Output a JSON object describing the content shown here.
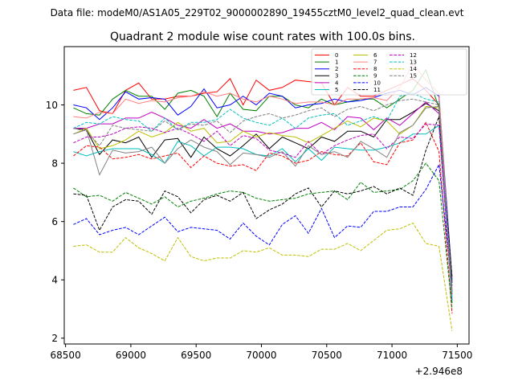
{
  "chart_data": {
    "type": "line",
    "suptitle": "Data file: modeM0/AS1A05_229T02_9000002890_19455cztM0_level2_quad_clean.evt",
    "title": "Quadrant 2 module wise count rates with 100.0s bins.",
    "xlabel": "",
    "ylabel": "",
    "offset_label": "+2.946e8",
    "xlim": [
      68490,
      71590
    ],
    "ylim": [
      1.8,
      12.0
    ],
    "xticks": [
      68500,
      69000,
      69500,
      70000,
      70500,
      71000,
      71500
    ],
    "yticks": [
      2,
      4,
      6,
      8,
      10
    ],
    "grid": false,
    "legend_position": "top-right",
    "x": [
      68560,
      68660,
      68760,
      68860,
      68960,
      69060,
      69160,
      69260,
      69360,
      69460,
      69560,
      69660,
      69760,
      69860,
      69960,
      70060,
      70160,
      70260,
      70360,
      70460,
      70560,
      70660,
      70760,
      70860,
      70960,
      71060,
      71160,
      71260,
      71360,
      71460
    ],
    "series": [
      {
        "name": "0",
        "color": "#ff0000",
        "dash": "solid",
        "values": [
          10.5,
          10.6,
          9.8,
          9.7,
          10.5,
          10.75,
          10.2,
          10.2,
          10.3,
          10.3,
          10.4,
          10.45,
          10.9,
          10.0,
          10.85,
          10.5,
          10.6,
          10.85,
          10.8,
          10.75,
          10.0,
          10.6,
          10.3,
          10.3,
          10.5,
          10.7,
          10.9,
          10.5,
          10.0,
          3.5
        ]
      },
      {
        "name": "1",
        "color": "#008000",
        "dash": "solid",
        "values": [
          9.9,
          9.7,
          9.65,
          10.2,
          10.5,
          10.3,
          10.3,
          9.85,
          10.4,
          10.5,
          10.3,
          9.6,
          10.4,
          9.85,
          9.8,
          10.3,
          10.3,
          10.0,
          9.9,
          10.2,
          10.0,
          10.1,
          10.2,
          10.2,
          9.9,
          10.2,
          10.5,
          11.2,
          9.9,
          3.2
        ]
      },
      {
        "name": "2",
        "color": "#0000ff",
        "dash": "solid",
        "values": [
          10.0,
          9.9,
          9.5,
          9.9,
          10.45,
          10.2,
          10.25,
          10.2,
          9.65,
          9.95,
          10.55,
          9.9,
          10.0,
          10.3,
          10.0,
          10.4,
          10.3,
          9.9,
          10.0,
          10.05,
          10.2,
          10.1,
          10.15,
          10.25,
          10.4,
          10.5,
          10.35,
          10.6,
          10.3,
          4.0
        ]
      },
      {
        "name": "3",
        "color": "#000000",
        "dash": "solid",
        "values": [
          9.2,
          9.15,
          8.3,
          8.8,
          8.7,
          8.9,
          8.2,
          8.8,
          8.85,
          8.2,
          8.9,
          8.5,
          8.25,
          8.6,
          9.0,
          8.5,
          8.9,
          8.7,
          8.5,
          8.9,
          8.75,
          9.1,
          9.1,
          8.9,
          9.5,
          9.5,
          9.75,
          10.05,
          9.8,
          3.9
        ]
      },
      {
        "name": "4",
        "color": "#bf00bf",
        "dash": "solid",
        "values": [
          9.2,
          9.2,
          9.35,
          9.35,
          9.55,
          9.55,
          9.75,
          9.55,
          9.3,
          9.2,
          9.5,
          9.2,
          9.35,
          9.1,
          9.1,
          9.0,
          9.05,
          9.2,
          9.2,
          9.4,
          9.15,
          9.6,
          9.55,
          9.15,
          9.55,
          9.3,
          9.7,
          10.1,
          9.7,
          3.6
        ]
      },
      {
        "name": "5",
        "color": "#00bfbf",
        "dash": "solid",
        "values": [
          8.4,
          8.25,
          8.4,
          8.5,
          8.5,
          8.5,
          8.3,
          8.0,
          8.75,
          8.6,
          8.25,
          8.55,
          8.55,
          8.5,
          8.3,
          8.25,
          8.5,
          8.05,
          8.5,
          8.1,
          8.55,
          8.5,
          8.45,
          8.45,
          8.55,
          8.7,
          9.0,
          9.0,
          9.3,
          3.4
        ]
      },
      {
        "name": "6",
        "color": "#bfbf00",
        "dash": "solid",
        "values": [
          9.0,
          9.2,
          8.5,
          8.6,
          8.8,
          9.1,
          8.9,
          9.05,
          9.4,
          9.1,
          9.2,
          8.7,
          8.75,
          9.1,
          8.9,
          9.05,
          8.95,
          8.9,
          8.7,
          8.95,
          9.2,
          9.45,
          9.25,
          9.55,
          9.45,
          9.0,
          9.3,
          9.95,
          9.9,
          3.7
        ]
      },
      {
        "name": "7",
        "color": "#ff7f7f",
        "dash": "solid",
        "values": [
          9.6,
          9.55,
          9.75,
          9.7,
          10.2,
          10.05,
          10.15,
          10.1,
          10.25,
          10.3,
          10.45,
          10.3,
          10.4,
          10.2,
          10.1,
          10.3,
          10.2,
          10.05,
          10.1,
          10.1,
          10.0,
          10.2,
          10.2,
          10.25,
          10.15,
          10.6,
          11.4,
          10.85,
          10.4,
          3.6
        ]
      },
      {
        "name": "8",
        "color": "#ff0000",
        "dash": "dashed",
        "values": [
          8.25,
          8.6,
          8.55,
          8.15,
          8.2,
          8.3,
          8.15,
          8.25,
          8.35,
          7.85,
          8.25,
          8.0,
          7.9,
          7.95,
          7.75,
          8.35,
          8.25,
          8.0,
          8.1,
          8.4,
          8.3,
          8.25,
          8.7,
          8.05,
          7.95,
          8.7,
          8.8,
          9.4,
          8.4,
          2.85
        ]
      },
      {
        "name": "9",
        "color": "#008000",
        "dash": "dashed",
        "values": [
          7.15,
          6.85,
          6.9,
          6.7,
          7.0,
          6.8,
          6.6,
          6.85,
          6.5,
          6.7,
          6.8,
          6.95,
          7.05,
          7.0,
          6.8,
          6.7,
          6.75,
          6.8,
          6.95,
          7.0,
          7.05,
          6.75,
          7.35,
          7.0,
          7.05,
          7.1,
          7.4,
          8.0,
          7.4,
          3.0
        ]
      },
      {
        "name": "10",
        "color": "#0000ff",
        "dash": "dashed",
        "values": [
          5.9,
          6.1,
          5.55,
          5.7,
          5.8,
          5.55,
          5.85,
          6.15,
          5.65,
          5.8,
          5.75,
          5.7,
          5.4,
          5.95,
          5.5,
          5.2,
          5.9,
          6.2,
          5.6,
          6.45,
          5.45,
          5.85,
          5.8,
          6.35,
          6.35,
          6.5,
          6.5,
          7.1,
          7.95,
          3.8
        ]
      },
      {
        "name": "11",
        "color": "#000000",
        "dash": "dashed",
        "values": [
          6.95,
          6.9,
          5.7,
          6.5,
          6.75,
          6.7,
          6.25,
          7.05,
          6.85,
          6.3,
          6.75,
          6.9,
          6.7,
          7.0,
          6.1,
          6.4,
          6.6,
          6.95,
          7.15,
          6.5,
          7.05,
          6.95,
          7.05,
          7.2,
          6.95,
          7.15,
          6.9,
          8.45,
          9.6,
          4.1
        ]
      },
      {
        "name": "12",
        "color": "#bf00bf",
        "dash": "dashed",
        "values": [
          8.7,
          8.9,
          8.9,
          9.0,
          9.2,
          9.25,
          9.2,
          9.05,
          9.2,
          9.0,
          8.75,
          9.1,
          8.6,
          8.95,
          8.85,
          8.45,
          8.35,
          8.2,
          8.75,
          8.3,
          8.6,
          8.8,
          8.95,
          9.0,
          8.5,
          8.9,
          8.85,
          9.35,
          9.3,
          3.3
        ]
      },
      {
        "name": "13",
        "color": "#00bfbf",
        "dash": "dashed",
        "values": [
          9.2,
          9.4,
          9.35,
          9.6,
          9.5,
          9.45,
          9.1,
          9.55,
          9.15,
          9.4,
          9.4,
          9.5,
          9.85,
          9.55,
          9.4,
          9.3,
          9.55,
          9.2,
          9.55,
          9.65,
          9.7,
          9.3,
          9.45,
          9.6,
          9.45,
          10.3,
          10.4,
          10.2,
          10.1,
          3.3
        ]
      },
      {
        "name": "14",
        "color": "#bfbf00",
        "dash": "dashed",
        "values": [
          5.15,
          5.2,
          4.95,
          4.95,
          5.45,
          5.1,
          4.9,
          4.65,
          5.45,
          4.8,
          4.65,
          4.75,
          4.75,
          5.0,
          4.95,
          5.1,
          4.85,
          4.85,
          4.8,
          5.05,
          5.05,
          5.25,
          5.0,
          5.35,
          5.7,
          5.75,
          5.95,
          5.25,
          5.15,
          2.25
        ]
      },
      {
        "name": "15",
        "color": "#7f7f7f",
        "dash": "dashed",
        "values": [
          9.2,
          9.1,
          8.6,
          9.3,
          9.2,
          9.15,
          9.1,
          9.45,
          9.15,
          9.35,
          9.3,
          9.45,
          9.05,
          9.45,
          9.6,
          9.7,
          9.55,
          9.65,
          9.8,
          9.9,
          9.6,
          9.85,
          9.95,
          9.8,
          10.0,
          10.15,
          10.2,
          10.1,
          10.0,
          3.5
        ]
      },
      {
        "name": "",
        "color": "#808080",
        "dash": "solid",
        "values": [
          9.0,
          9.15,
          7.6,
          8.45,
          8.35,
          8.4,
          8.55,
          8.0,
          8.5,
          8.8,
          8.55,
          8.4,
          7.95,
          8.35,
          8.3,
          8.2,
          8.4,
          7.9,
          8.6,
          8.3,
          8.4,
          8.2,
          8.75,
          8.5,
          8.2,
          9.05,
          9.3,
          9.9,
          9.95,
          3.6
        ]
      }
    ]
  }
}
